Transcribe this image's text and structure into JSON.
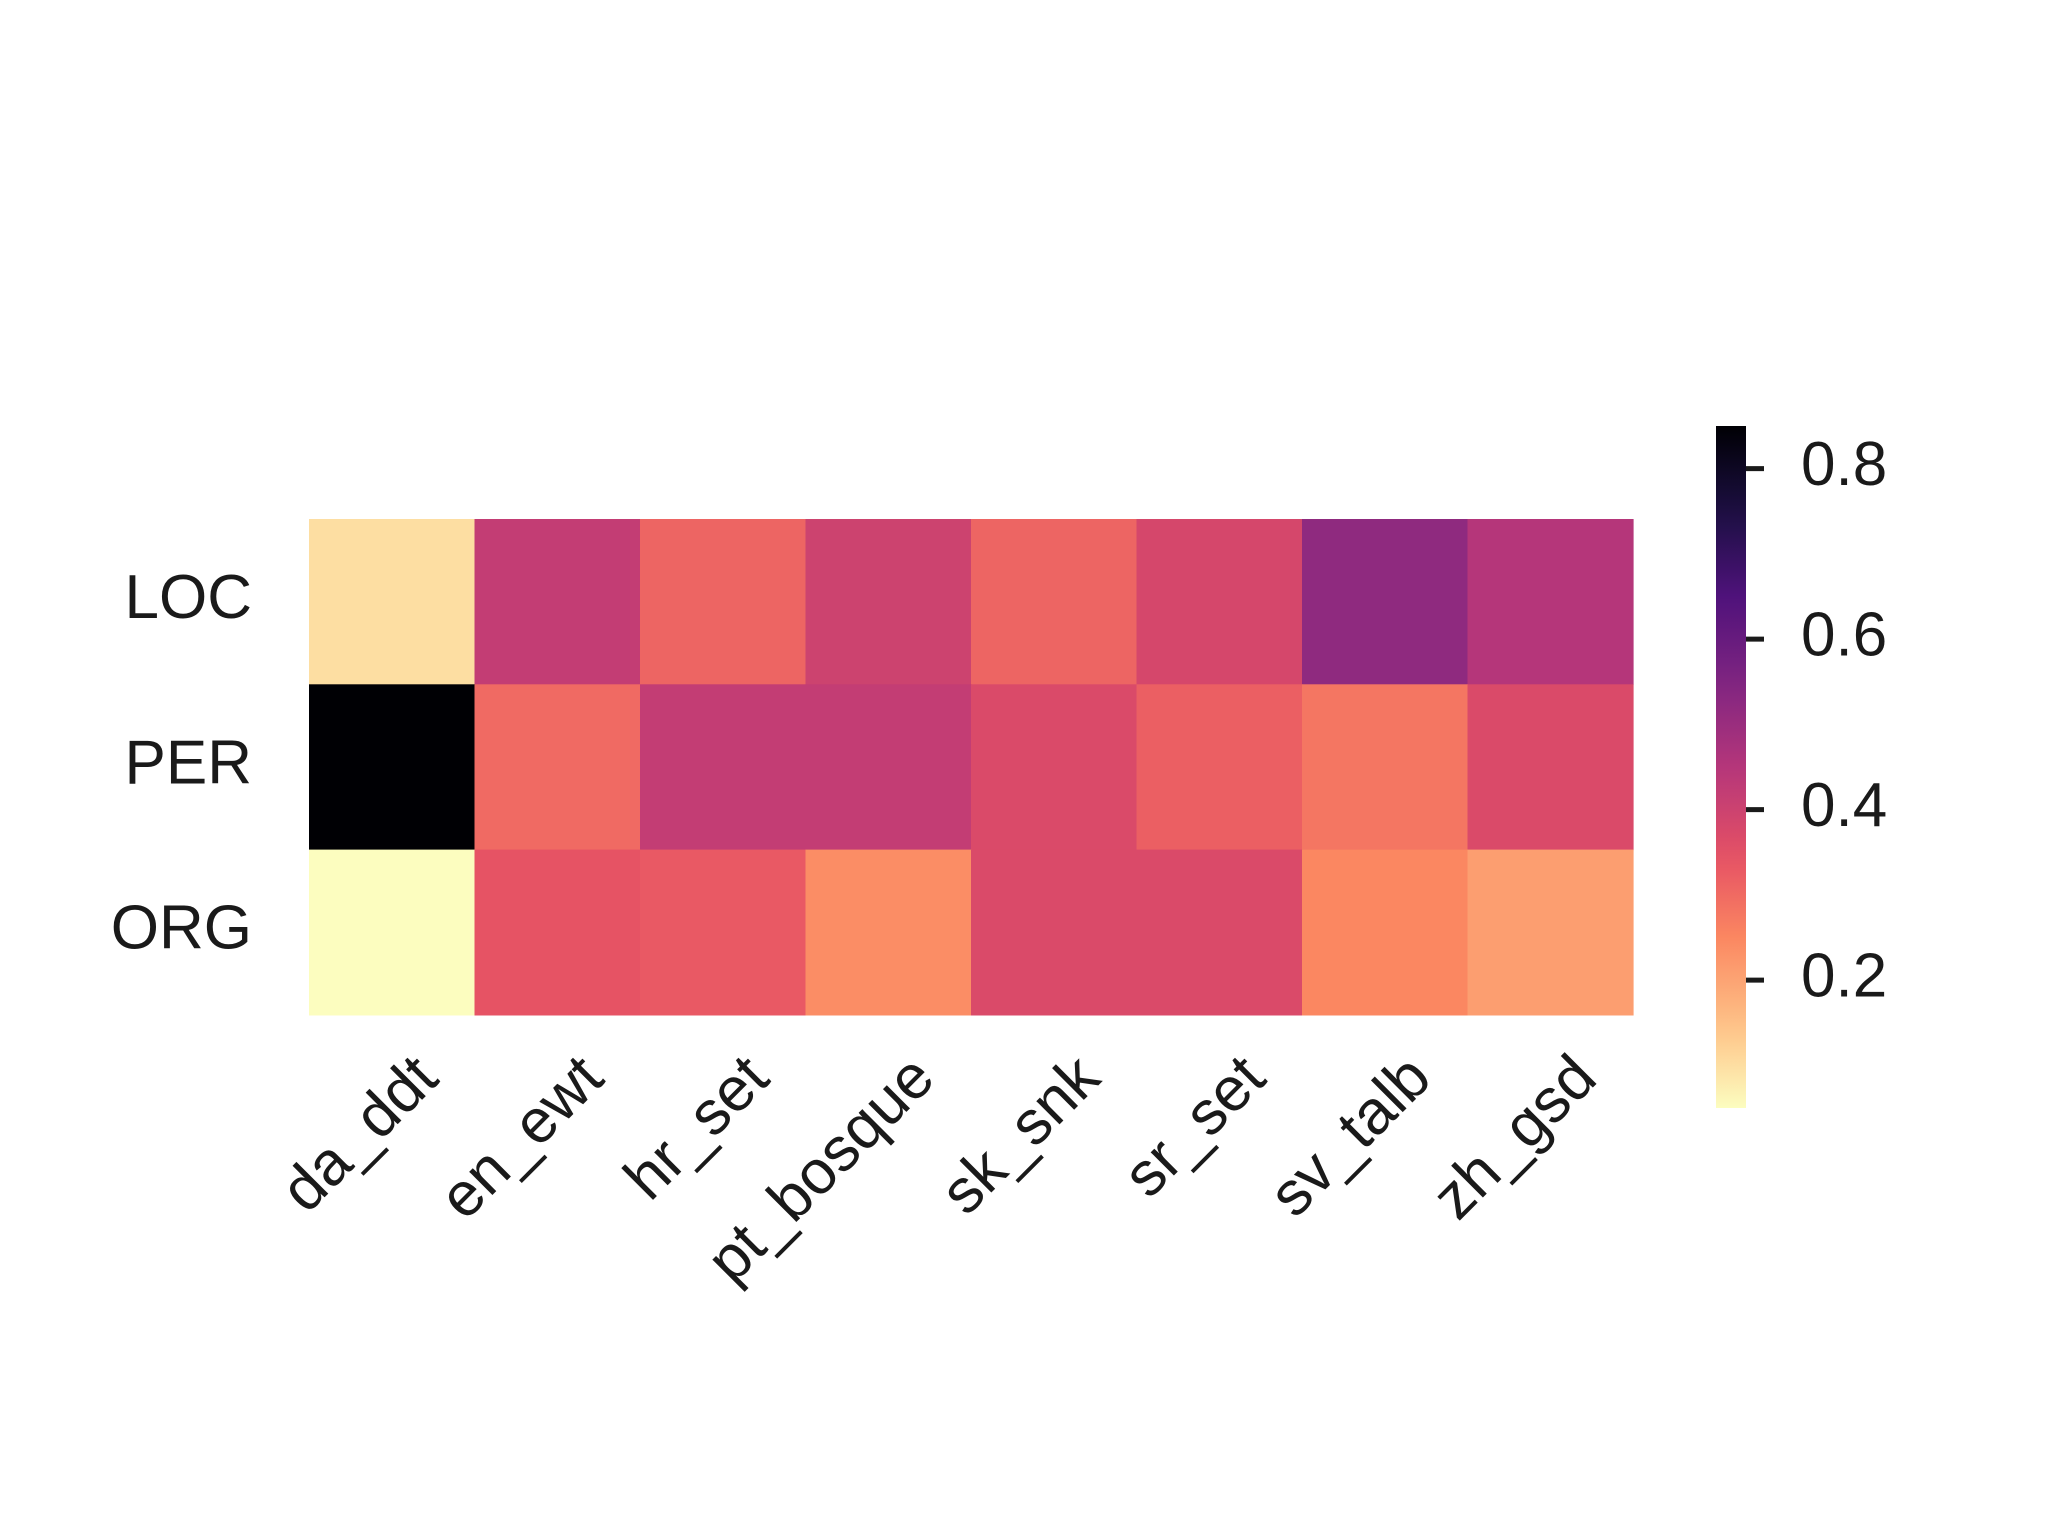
{
  "chart_data": {
    "type": "heatmap",
    "title": "",
    "xlabel": "",
    "ylabel": "",
    "x_categories": [
      "da_ddt",
      "en_ewt",
      "hr_set",
      "pt_bosque",
      "sk_snk",
      "sr_set",
      "sv_talb",
      "zh_gsd"
    ],
    "y_categories": [
      "LOC",
      "PER",
      "ORG"
    ],
    "values": [
      [
        0.1,
        0.42,
        0.31,
        0.4,
        0.31,
        0.38,
        0.52,
        0.45
      ],
      [
        0.85,
        0.3,
        0.42,
        0.42,
        0.37,
        0.32,
        0.28,
        0.37
      ],
      [
        0.05,
        0.34,
        0.33,
        0.24,
        0.37,
        0.37,
        0.25,
        0.21
      ]
    ],
    "colormap": "magma_r",
    "colors": {
      "low": "#fcfdbf",
      "high": "#000004"
    },
    "vmin": 0.05,
    "vmax": 0.85,
    "colorbar": {
      "position": "right",
      "ticks": [
        0.8,
        0.6,
        0.4,
        0.2
      ],
      "tick_labels": [
        "0.8",
        "0.6",
        "0.4",
        "0.2"
      ]
    },
    "grid": false,
    "x_tick_rotation": "45 degrees"
  }
}
